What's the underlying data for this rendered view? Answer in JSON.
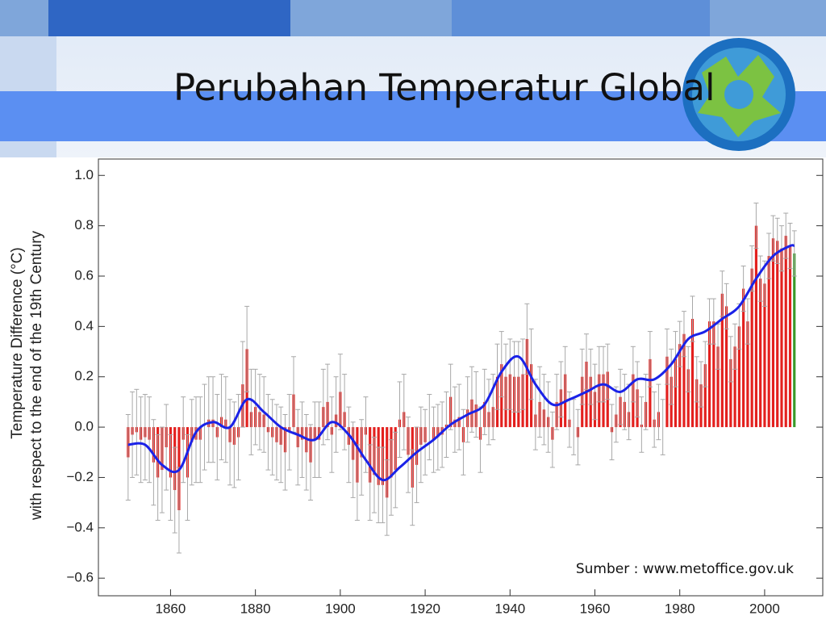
{
  "chart_data": {
    "type": "bar",
    "title": "Perubahan Temperatur Global",
    "y_label_lines": [
      "Temperature Difference (°C)",
      "with respect to the end of the 19th Century"
    ],
    "source": "Sumber : www.metoffice.gov.uk",
    "x_start": 1850,
    "values": [
      -0.12,
      -0.03,
      -0.02,
      -0.05,
      -0.04,
      -0.05,
      -0.14,
      -0.2,
      -0.17,
      -0.08,
      -0.2,
      -0.25,
      -0.33,
      -0.05,
      -0.2,
      -0.06,
      -0.05,
      -0.05,
      0.0,
      0.03,
      0.03,
      -0.04,
      0.04,
      0.03,
      -0.06,
      -0.07,
      -0.04,
      0.17,
      0.31,
      0.06,
      0.08,
      0.06,
      0.05,
      -0.02,
      -0.04,
      -0.06,
      -0.07,
      -0.1,
      -0.02,
      0.13,
      -0.08,
      -0.05,
      -0.1,
      -0.14,
      -0.05,
      -0.05,
      0.08,
      0.1,
      -0.03,
      0.05,
      0.14,
      0.06,
      -0.07,
      -0.13,
      -0.22,
      -0.12,
      -0.03,
      -0.22,
      -0.19,
      -0.23,
      -0.23,
      -0.28,
      -0.2,
      -0.17,
      0.03,
      0.06,
      -0.11,
      -0.24,
      -0.15,
      -0.07,
      -0.06,
      0.0,
      -0.05,
      -0.04,
      -0.03,
      0.01,
      0.12,
      0.03,
      0.04,
      -0.06,
      0.07,
      0.11,
      0.09,
      -0.05,
      0.1,
      0.06,
      0.08,
      0.2,
      0.25,
      0.2,
      0.21,
      0.2,
      0.2,
      0.21,
      0.35,
      0.25,
      0.05,
      0.1,
      0.07,
      0.04,
      -0.05,
      0.1,
      0.15,
      0.21,
      0.03,
      0.0,
      -0.04,
      0.2,
      0.26,
      0.2,
      0.14,
      0.21,
      0.21,
      0.22,
      -0.02,
      0.05,
      0.12,
      0.1,
      0.06,
      0.21,
      0.15,
      0.01,
      0.1,
      0.27,
      0.03,
      0.06,
      0.0,
      0.28,
      0.2,
      0.27,
      0.33,
      0.37,
      0.23,
      0.43,
      0.19,
      0.17,
      0.25,
      0.42,
      0.42,
      0.32,
      0.53,
      0.48,
      0.27,
      0.32,
      0.4,
      0.55,
      0.42,
      0.63,
      0.8,
      0.59,
      0.57,
      0.68,
      0.75,
      0.74,
      0.71,
      0.76,
      0.72,
      0.69
    ],
    "errors": [
      0.17,
      0.17,
      0.17,
      0.17,
      0.17,
      0.17,
      0.17,
      0.17,
      0.17,
      0.17,
      0.17,
      0.17,
      0.17,
      0.17,
      0.17,
      0.17,
      0.17,
      0.17,
      0.17,
      0.17,
      0.17,
      0.17,
      0.17,
      0.17,
      0.17,
      0.17,
      0.17,
      0.17,
      0.17,
      0.17,
      0.15,
      0.15,
      0.15,
      0.15,
      0.15,
      0.15,
      0.15,
      0.15,
      0.15,
      0.15,
      0.15,
      0.15,
      0.15,
      0.15,
      0.15,
      0.15,
      0.15,
      0.15,
      0.15,
      0.15,
      0.15,
      0.15,
      0.15,
      0.15,
      0.15,
      0.15,
      0.15,
      0.15,
      0.15,
      0.15,
      0.15,
      0.15,
      0.15,
      0.15,
      0.15,
      0.15,
      0.15,
      0.15,
      0.15,
      0.15,
      0.13,
      0.13,
      0.13,
      0.13,
      0.13,
      0.13,
      0.13,
      0.13,
      0.13,
      0.13,
      0.13,
      0.13,
      0.13,
      0.13,
      0.13,
      0.13,
      0.13,
      0.13,
      0.13,
      0.13,
      0.14,
      0.14,
      0.14,
      0.14,
      0.14,
      0.14,
      0.14,
      0.14,
      0.14,
      0.14,
      0.11,
      0.11,
      0.11,
      0.11,
      0.11,
      0.11,
      0.11,
      0.11,
      0.11,
      0.11,
      0.11,
      0.11,
      0.11,
      0.11,
      0.11,
      0.11,
      0.11,
      0.11,
      0.11,
      0.11,
      0.11,
      0.11,
      0.11,
      0.11,
      0.11,
      0.11,
      0.11,
      0.11,
      0.11,
      0.11,
      0.09,
      0.09,
      0.09,
      0.09,
      0.09,
      0.09,
      0.09,
      0.09,
      0.09,
      0.09,
      0.09,
      0.09,
      0.09,
      0.09,
      0.09,
      0.09,
      0.09,
      0.09,
      0.09,
      0.09,
      0.09,
      0.09,
      0.09,
      0.09,
      0.09,
      0.09,
      0.09,
      0.09
    ],
    "color": "#e3201e",
    "last_color": "#3a9a2a",
    "error_color": "#a8a8a8",
    "smooth": {
      "color": "#1a22e8",
      "x": [
        1850,
        1854,
        1858,
        1862,
        1866,
        1870,
        1874,
        1878,
        1882,
        1886,
        1890,
        1894,
        1898,
        1902,
        1906,
        1910,
        1914,
        1918,
        1922,
        1926,
        1930,
        1934,
        1938,
        1942,
        1946,
        1950,
        1954,
        1958,
        1962,
        1966,
        1970,
        1974,
        1978,
        1982,
        1986,
        1990,
        1994,
        1998,
        2002,
        2006,
        2007
      ],
      "values": [
        -0.07,
        -0.07,
        -0.15,
        -0.17,
        -0.02,
        0.02,
        0.0,
        0.11,
        0.06,
        0.0,
        -0.03,
        -0.05,
        0.02,
        -0.03,
        -0.13,
        -0.21,
        -0.16,
        -0.1,
        -0.05,
        0.01,
        0.05,
        0.09,
        0.22,
        0.28,
        0.17,
        0.09,
        0.11,
        0.14,
        0.17,
        0.14,
        0.19,
        0.19,
        0.25,
        0.35,
        0.38,
        0.43,
        0.48,
        0.59,
        0.68,
        0.72,
        0.72
      ]
    },
    "xlim": [
      1843,
      2013.7
    ],
    "ylim": [
      -0.67,
      1.065
    ],
    "xticks": [
      1860,
      1880,
      1900,
      1920,
      1940,
      1960,
      1980,
      2000
    ],
    "yticks": [
      {
        "value": -0.6,
        "label": "−0.6"
      },
      {
        "value": -0.4,
        "label": "−0.4"
      },
      {
        "value": -0.2,
        "label": "−0.2"
      },
      {
        "value": 0,
        "label": "0.0"
      },
      {
        "value": 0.2,
        "label": "0.2"
      },
      {
        "value": 0.4,
        "label": "0.4"
      },
      {
        "value": 0.6,
        "label": "0.6"
      },
      {
        "value": 0.8,
        "label": "0.8"
      },
      {
        "value": 1,
        "label": "1.0"
      }
    ]
  }
}
